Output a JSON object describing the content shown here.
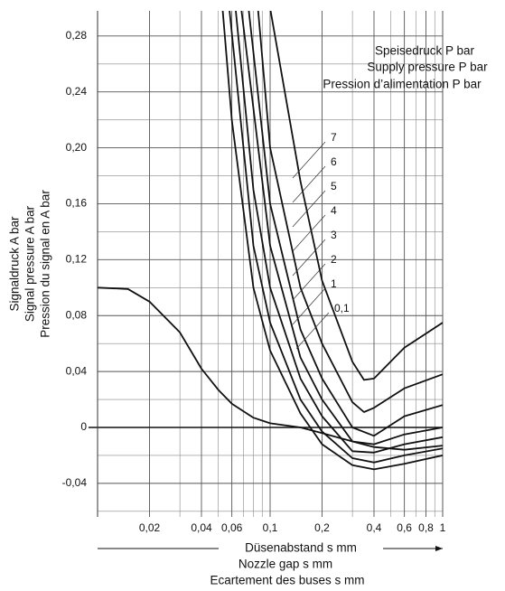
{
  "chart_data": {
    "type": "line",
    "legend_title": [
      "Speisedruck P bar",
      "Supply pressure P bar",
      "Pression d’alimentation P bar"
    ],
    "xlabel": [
      "Düsenabstand s mm",
      "Nozzle gap s mm",
      "Ecartement des buses s mm"
    ],
    "ylabel": [
      "Signaldruck A bar",
      "Signal pressure A bar",
      "Pression du signal en A bar"
    ],
    "xscale": "log",
    "grid": true,
    "xlim": [
      0.01,
      1
    ],
    "ylim": [
      -0.064,
      0.298
    ],
    "xticks": [
      {
        "value": 0.02,
        "label": "0,02"
      },
      {
        "value": 0.04,
        "label": "0,04"
      },
      {
        "value": 0.06,
        "label": "0,06"
      },
      {
        "value": 0.1,
        "label": "0,1"
      },
      {
        "value": 0.2,
        "label": "0,2"
      },
      {
        "value": 0.4,
        "label": "0,4"
      },
      {
        "value": 0.6,
        "label": "0,6"
      },
      {
        "value": 0.8,
        "label": "0,8"
      },
      1
    ],
    "x_minor_ticks": [
      0.03,
      0.05,
      0.07,
      0.08,
      0.09,
      0.3,
      0.5,
      0.7,
      0.9
    ],
    "yticks": [
      {
        "value": -0.04,
        "label": "-0,04"
      },
      0,
      {
        "value": 0.04,
        "label": "0,04"
      },
      {
        "value": 0.08,
        "label": "0,08"
      },
      {
        "value": 0.12,
        "label": "0,12"
      },
      {
        "value": 0.16,
        "label": "0,16"
      },
      {
        "value": 0.2,
        "label": "0,20"
      },
      {
        "value": 0.24,
        "label": "0,24"
      },
      {
        "value": 0.28,
        "label": "0,28"
      }
    ],
    "y_minor_ticks": [
      -0.06,
      -0.02,
      0.02,
      0.06,
      0.1,
      0.14,
      0.18,
      0.22,
      0.26
    ],
    "series": [
      {
        "name": "0,1",
        "color": "#111111",
        "x": [
          0.01,
          0.015,
          0.02,
          0.03,
          0.04,
          0.05,
          0.06,
          0.08,
          0.1,
          0.15,
          0.2,
          0.3,
          0.4,
          0.6,
          1
        ],
        "values": [
          0.1,
          0.099,
          0.09,
          0.068,
          0.042,
          0.027,
          0.017,
          0.007,
          0.003,
          0.0,
          -0.004,
          -0.01,
          -0.014,
          -0.016,
          -0.013
        ]
      },
      {
        "name": "1",
        "color": "#111111",
        "x": [
          0.053,
          0.06,
          0.08,
          0.1,
          0.15,
          0.2,
          0.3,
          0.4,
          0.6,
          1
        ],
        "values": [
          0.3,
          0.22,
          0.1,
          0.055,
          0.01,
          -0.012,
          -0.027,
          -0.03,
          -0.026,
          -0.02
        ]
      },
      {
        "name": "2",
        "color": "#111111",
        "x": [
          0.058,
          0.08,
          0.1,
          0.15,
          0.2,
          0.3,
          0.4,
          0.6,
          1
        ],
        "values": [
          0.3,
          0.13,
          0.075,
          0.02,
          -0.003,
          -0.022,
          -0.025,
          -0.02,
          -0.015
        ]
      },
      {
        "name": "3",
        "color": "#111111",
        "x": [
          0.063,
          0.08,
          0.1,
          0.15,
          0.2,
          0.3,
          0.4,
          0.6,
          1
        ],
        "values": [
          0.3,
          0.17,
          0.1,
          0.035,
          0.008,
          -0.017,
          -0.018,
          -0.012,
          -0.007
        ]
      },
      {
        "name": "4",
        "color": "#111111",
        "x": [
          0.068,
          0.1,
          0.15,
          0.2,
          0.3,
          0.4,
          0.6,
          1
        ],
        "values": [
          0.3,
          0.13,
          0.05,
          0.02,
          -0.01,
          -0.012,
          -0.005,
          0.0
        ]
      },
      {
        "name": "5",
        "color": "#111111",
        "x": [
          0.075,
          0.1,
          0.15,
          0.2,
          0.3,
          0.4,
          0.6,
          1
        ],
        "values": [
          0.3,
          0.16,
          0.07,
          0.035,
          0.0,
          -0.006,
          0.008,
          0.016
        ]
      },
      {
        "name": "6",
        "color": "#111111",
        "x": [
          0.085,
          0.1,
          0.15,
          0.2,
          0.3,
          0.35,
          0.4,
          0.6,
          1
        ],
        "values": [
          0.3,
          0.2,
          0.1,
          0.06,
          0.018,
          0.011,
          0.014,
          0.028,
          0.038
        ]
      },
      {
        "name": "7",
        "color": "#111111",
        "x": [
          0.1,
          0.15,
          0.2,
          0.3,
          0.35,
          0.4,
          0.6,
          1
        ],
        "values": [
          0.3,
          0.176,
          0.105,
          0.047,
          0.034,
          0.035,
          0.057,
          0.075
        ]
      }
    ]
  }
}
